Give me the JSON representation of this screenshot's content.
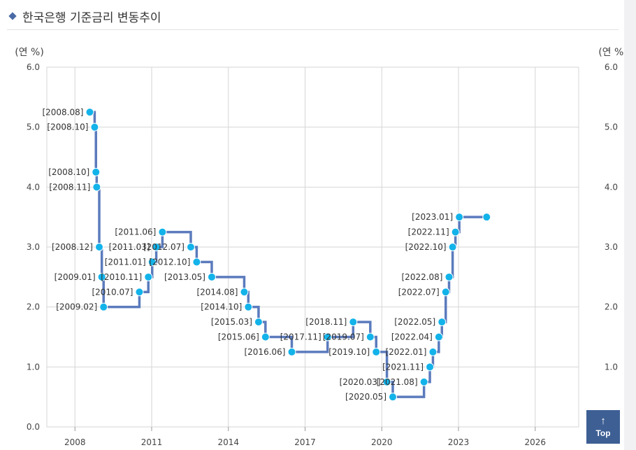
{
  "page": {
    "title": "한국은행 기준금리 변동추이"
  },
  "top_button": {
    "arrow": "↑",
    "label": "Top"
  },
  "colors": {
    "line": "#5b7bbd",
    "point": "#13b3ea",
    "grid": "#d6d6d6",
    "accent": "#4a6aa5",
    "top_button": "#3d5f94"
  },
  "chart_data": {
    "type": "line",
    "step": true,
    "left_axis_unit": "(연 %)",
    "right_axis_unit": "(연 %)",
    "ylim": [
      0,
      6
    ],
    "xlim": [
      2006.9,
      2027.7
    ],
    "y_ticks": [
      "0.0",
      "1.0",
      "2.0",
      "3.0",
      "4.0",
      "5.0",
      "6.0"
    ],
    "x_ticks": [
      "2008",
      "2011",
      "2014",
      "2017",
      "2020",
      "2023",
      "2026"
    ],
    "grid": true,
    "legend": "none",
    "series": [
      {
        "points": [
          {
            "label": "[2008.08]",
            "x": 2008.58,
            "y": 5.25
          },
          {
            "label": "[2008.10]",
            "x": 2008.77,
            "y": 5.0
          },
          {
            "label": "[2008.10]",
            "x": 2008.82,
            "y": 4.25
          },
          {
            "label": "[2008.11]",
            "x": 2008.85,
            "y": 4.0
          },
          {
            "label": "[2008.12]",
            "x": 2008.95,
            "y": 3.0
          },
          {
            "label": "[2009.01]",
            "x": 2009.05,
            "y": 2.5
          },
          {
            "label": "[2009.02]",
            "x": 2009.12,
            "y": 2.0
          },
          {
            "label": "[2010.07]",
            "x": 2010.52,
            "y": 2.25
          },
          {
            "label": "[2010.11]",
            "x": 2010.87,
            "y": 2.5
          },
          {
            "label": "[2011.01]",
            "x": 2011.02,
            "y": 2.75
          },
          {
            "label": "[2011.03]",
            "x": 2011.18,
            "y": 3.0
          },
          {
            "label": "[2011.06]",
            "x": 2011.42,
            "y": 3.25
          },
          {
            "label": "[2012.07]",
            "x": 2012.53,
            "y": 3.0
          },
          {
            "label": "[2012.10]",
            "x": 2012.76,
            "y": 2.75
          },
          {
            "label": "[2013.05]",
            "x": 2013.35,
            "y": 2.5
          },
          {
            "label": "[2014.08]",
            "x": 2014.62,
            "y": 2.25
          },
          {
            "label": "[2014.10]",
            "x": 2014.78,
            "y": 2.0
          },
          {
            "label": "[2015.03]",
            "x": 2015.18,
            "y": 1.75
          },
          {
            "label": "[2015.06]",
            "x": 2015.45,
            "y": 1.5
          },
          {
            "label": "[2016.06]",
            "x": 2016.48,
            "y": 1.25
          },
          {
            "label": "[2017.11]",
            "x": 2017.88,
            "y": 1.5
          },
          {
            "label": "[2018.11]",
            "x": 2018.88,
            "y": 1.75
          },
          {
            "label": "[2019.07]",
            "x": 2019.55,
            "y": 1.5
          },
          {
            "label": "[2019.10]",
            "x": 2019.78,
            "y": 1.25
          },
          {
            "label": "[2020.03]",
            "x": 2020.2,
            "y": 0.75
          },
          {
            "label": "[2020.05]",
            "x": 2020.43,
            "y": 0.5
          },
          {
            "label": "[2021.08]",
            "x": 2021.65,
            "y": 0.75
          },
          {
            "label": "[2021.11]",
            "x": 2021.88,
            "y": 1.0
          },
          {
            "label": "[2022.01]",
            "x": 2022.0,
            "y": 1.25
          },
          {
            "label": "[2022.04]",
            "x": 2022.23,
            "y": 1.5
          },
          {
            "label": "[2022.05]",
            "x": 2022.35,
            "y": 1.75
          },
          {
            "label": "[2022.07]",
            "x": 2022.5,
            "y": 2.25
          },
          {
            "label": "[2022.08]",
            "x": 2022.63,
            "y": 2.5
          },
          {
            "label": "[2022.10]",
            "x": 2022.77,
            "y": 3.0
          },
          {
            "label": "[2022.11]",
            "x": 2022.88,
            "y": 3.25
          },
          {
            "label": "[2023.01]",
            "x": 2023.03,
            "y": 3.5
          },
          {
            "label": "",
            "x": 2024.1,
            "y": 3.5
          }
        ]
      }
    ]
  }
}
